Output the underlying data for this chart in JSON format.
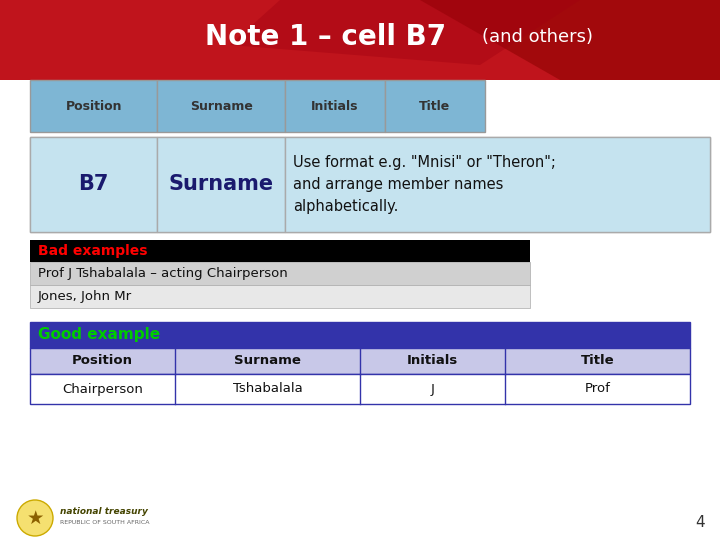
{
  "title_main": "Note 1 – cell B7",
  "title_sub": "(and others)",
  "bg_red": "#C0141C",
  "bg_white": "#FFFFFF",
  "header_blue": "#7EB6D4",
  "light_blue": "#C5E3EF",
  "black": "#000000",
  "dark_blue": "#3333AA",
  "purple_light": "#C8C8E8",
  "green_text": "#00CC00",
  "red_text": "#FF0000",
  "gray1": "#D0D0D0",
  "gray2": "#E8E8E8",
  "header_cols": [
    "Position",
    "Surname",
    "Initials",
    "Title"
  ],
  "b7_label": "B7",
  "b7_field": "Surname",
  "b7_desc": "Use format e.g. \"Mnisi\" or \"Theron\";\nand arrange member names\nalphabetically.",
  "bad_label": "Bad examples",
  "bad_rows": [
    "Prof J Tshabalala – acting Chairperson",
    "Jones, John Mr"
  ],
  "good_label": "Good example",
  "good_cols": [
    "Position",
    "Surname",
    "Initials",
    "Title"
  ],
  "good_data": [
    "Chairperson",
    "Tshabalala",
    "J",
    "Prof"
  ],
  "page_num": "4",
  "logo_text": "national treasury",
  "logo_sub": "REPUBLIC OF SOUTH AFRICA"
}
